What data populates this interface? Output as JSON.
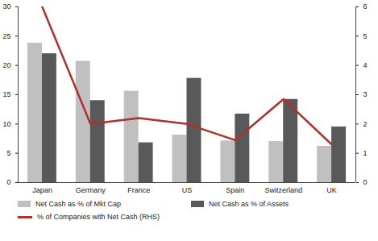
{
  "chart_data": {
    "type": "bar",
    "categories": [
      "Japan",
      "Germany",
      "France",
      "US",
      "Spain",
      "Switzerland",
      "UK"
    ],
    "series": [
      {
        "name": "Net Cash as % of Mkt Cap",
        "color": "#c0c0c0",
        "values": [
          23.8,
          20.7,
          15.6,
          8.1,
          7.1,
          7.0,
          6.2
        ]
      },
      {
        "name": "Net Cash as % of Assets",
        "color": "#595959",
        "values": [
          22.0,
          14.0,
          6.8,
          17.8,
          11.7,
          14.2,
          9.5
        ]
      },
      {
        "name": "% of Companies with Net Cash (RHS)",
        "color": "#b0302c",
        "type": "line",
        "axis": "y2",
        "values": [
          6.0,
          2.0,
          2.2,
          2.0,
          1.45,
          2.85,
          1.3
        ]
      }
    ],
    "ylim": [
      0,
      30
    ],
    "yticks": [
      0,
      5,
      10,
      15,
      20,
      25,
      30
    ],
    "y2lim": [
      0,
      6
    ],
    "y2ticks": [
      0,
      1,
      2,
      3,
      4,
      5,
      6
    ],
    "grid": false,
    "legend": "bottom"
  }
}
